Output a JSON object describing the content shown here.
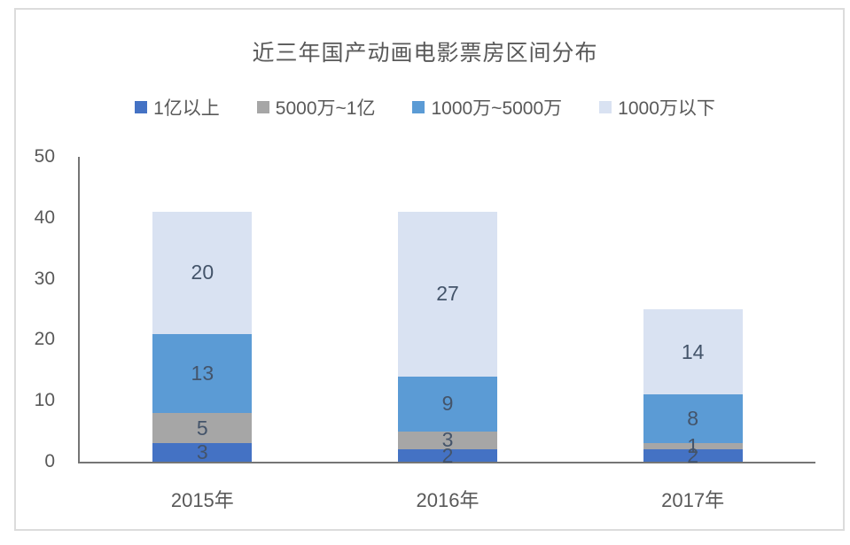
{
  "page": {
    "background": "#ffffff",
    "card_border_color": "#dcdcdc",
    "axis_line_color": "#757575",
    "axis_text_color": "#595959",
    "data_label_color": "#44546a"
  },
  "chart_data": {
    "type": "bar",
    "stacked": true,
    "title": "近三年国产动画电影票房区间分布",
    "categories": [
      "2015年",
      "2016年",
      "2017年"
    ],
    "series": [
      {
        "name": "1亿以上",
        "color": "#4472c4",
        "values": [
          3,
          2,
          2
        ]
      },
      {
        "name": "5000万~1亿",
        "color": "#a6a6a6",
        "values": [
          5,
          3,
          1
        ]
      },
      {
        "name": "1000万~5000万",
        "color": "#5b9bd5",
        "values": [
          13,
          9,
          8
        ]
      },
      {
        "name": "1000万以下",
        "color": "#d9e2f2",
        "values": [
          20,
          27,
          14
        ]
      }
    ],
    "totals": [
      41,
      41,
      25
    ],
    "ylim": [
      0,
      50
    ],
    "yticks": [
      0,
      10,
      20,
      30,
      40,
      50
    ],
    "grid": false,
    "legend_position": "top",
    "data_labels": true
  }
}
